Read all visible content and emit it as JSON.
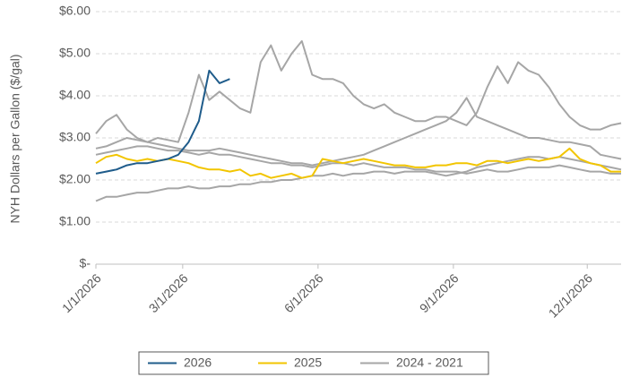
{
  "chart_data": {
    "type": "line",
    "y_label": "NYH Dollars per Gallon ($/gal)",
    "x": [
      "1/1/2026",
      "1/8/2026",
      "1/15/2026",
      "1/22/2026",
      "1/29/2026",
      "2/5/2026",
      "2/12/2026",
      "2/19/2026",
      "2/26/2026",
      "3/5/2026",
      "3/12/2026",
      "3/19/2026",
      "3/26/2026",
      "4/2/2026",
      "4/9/2026",
      "4/16/2026",
      "4/23/2026",
      "4/30/2026",
      "5/7/2026",
      "5/14/2026",
      "5/21/2026",
      "5/28/2026",
      "6/4/2026",
      "6/11/2026",
      "6/18/2026",
      "6/25/2026",
      "7/2/2026",
      "7/9/2026",
      "7/16/2026",
      "7/23/2026",
      "7/30/2026",
      "8/6/2026",
      "8/13/2026",
      "8/20/2026",
      "8/27/2026",
      "9/3/2026",
      "9/10/2026",
      "9/17/2026",
      "9/24/2026",
      "10/1/2026",
      "10/8/2026",
      "10/15/2026",
      "10/22/2026",
      "10/29/2026",
      "11/5/2026",
      "11/12/2026",
      "11/19/2026",
      "11/26/2026",
      "12/3/2026",
      "12/10/2026",
      "12/17/2026",
      "12/24/2026"
    ],
    "xlim": [
      "1/1/2026",
      "12/24/2026"
    ],
    "xticks": [
      "1/1/2026",
      "3/1/2026",
      "6/1/2026",
      "9/1/2026",
      "12/1/2026"
    ],
    "ylim": [
      0,
      6
    ],
    "yticks": [
      {
        "value": 0,
        "label": "$-"
      },
      {
        "value": 1,
        "label": "$1.00"
      },
      {
        "value": 2,
        "label": "$2.00"
      },
      {
        "value": 3,
        "label": "$3.00"
      },
      {
        "value": 4,
        "label": "$4.00"
      },
      {
        "value": 5,
        "label": "$5.00"
      },
      {
        "value": 6,
        "label": "$6.00"
      }
    ],
    "grid": true,
    "legend": "bottom",
    "series": [
      {
        "name": "2026",
        "color": "#1f5c8b",
        "values": [
          2.15,
          2.2,
          2.25,
          2.35,
          2.4,
          2.4,
          2.45,
          2.5,
          2.6,
          2.9,
          3.4,
          4.6,
          4.3,
          4.4,
          null,
          null,
          null,
          null,
          null,
          null,
          null,
          null,
          null,
          null,
          null,
          null,
          null,
          null,
          null,
          null,
          null,
          null,
          null,
          null,
          null,
          null,
          null,
          null,
          null,
          null,
          null,
          null,
          null,
          null,
          null,
          null,
          null,
          null,
          null,
          null,
          null,
          null
        ]
      },
      {
        "name": "2025",
        "color": "#f2c500",
        "values": [
          2.4,
          2.55,
          2.6,
          2.5,
          2.45,
          2.5,
          2.45,
          2.5,
          2.45,
          2.4,
          2.3,
          2.25,
          2.25,
          2.2,
          2.25,
          2.1,
          2.15,
          2.05,
          2.1,
          2.15,
          2.05,
          2.1,
          2.5,
          2.45,
          2.4,
          2.45,
          2.5,
          2.45,
          2.4,
          2.35,
          2.35,
          2.3,
          2.3,
          2.35,
          2.35,
          2.4,
          2.4,
          2.35,
          2.45,
          2.45,
          2.4,
          2.45,
          2.5,
          2.45,
          2.5,
          2.55,
          2.75,
          2.5,
          2.4,
          2.35,
          2.2,
          2.2
        ]
      },
      {
        "name": "2024 - 2021",
        "color": "#a6a6a6",
        "values": [
          [
            3.1,
            3.4,
            3.55,
            3.2,
            3.0,
            2.9,
            3.0,
            2.95,
            2.9,
            3.6,
            4.5,
            3.9,
            4.1,
            3.9,
            3.7,
            3.6,
            4.8,
            5.2,
            4.6,
            5.0,
            5.3,
            4.5,
            4.4,
            4.4,
            4.3,
            4.0,
            3.8,
            3.7,
            3.8,
            3.6,
            3.5,
            3.4,
            3.4,
            3.5,
            3.5,
            3.4,
            3.3,
            3.6,
            4.2,
            4.7,
            4.3,
            4.8,
            4.6,
            4.5,
            4.2,
            3.8,
            3.5,
            3.3,
            3.2,
            3.2,
            3.3,
            3.35
          ],
          [
            2.75,
            2.8,
            2.9,
            3.0,
            2.95,
            2.9,
            2.85,
            2.8,
            2.75,
            2.7,
            2.7,
            2.7,
            2.75,
            2.7,
            2.65,
            2.6,
            2.55,
            2.5,
            2.45,
            2.4,
            2.4,
            2.35,
            2.4,
            2.45,
            2.5,
            2.55,
            2.6,
            2.7,
            2.8,
            2.9,
            3.0,
            3.1,
            3.2,
            3.3,
            3.4,
            3.6,
            3.95,
            3.5,
            3.4,
            3.3,
            3.2,
            3.1,
            3.0,
            3.0,
            2.95,
            2.9,
            2.9,
            2.85,
            2.8,
            2.6,
            2.55,
            2.5
          ],
          [
            2.6,
            2.65,
            2.7,
            2.75,
            2.8,
            2.8,
            2.75,
            2.7,
            2.7,
            2.65,
            2.6,
            2.65,
            2.6,
            2.6,
            2.55,
            2.5,
            2.45,
            2.4,
            2.4,
            2.35,
            2.35,
            2.3,
            2.35,
            2.4,
            2.4,
            2.35,
            2.4,
            2.35,
            2.3,
            2.3,
            2.3,
            2.25,
            2.25,
            2.2,
            2.2,
            2.2,
            2.15,
            2.2,
            2.25,
            2.2,
            2.2,
            2.25,
            2.3,
            2.3,
            2.3,
            2.35,
            2.3,
            2.25,
            2.2,
            2.2,
            2.15,
            2.15
          ],
          [
            1.5,
            1.6,
            1.6,
            1.65,
            1.7,
            1.7,
            1.75,
            1.8,
            1.8,
            1.85,
            1.8,
            1.8,
            1.85,
            1.85,
            1.9,
            1.9,
            1.95,
            1.95,
            2.0,
            2.0,
            2.05,
            2.1,
            2.1,
            2.15,
            2.1,
            2.15,
            2.15,
            2.2,
            2.2,
            2.15,
            2.2,
            2.2,
            2.2,
            2.15,
            2.1,
            2.15,
            2.2,
            2.3,
            2.35,
            2.4,
            2.45,
            2.5,
            2.55,
            2.55,
            2.5,
            2.55,
            2.5,
            2.45,
            2.4,
            2.35,
            2.3,
            2.25
          ]
        ]
      }
    ]
  }
}
